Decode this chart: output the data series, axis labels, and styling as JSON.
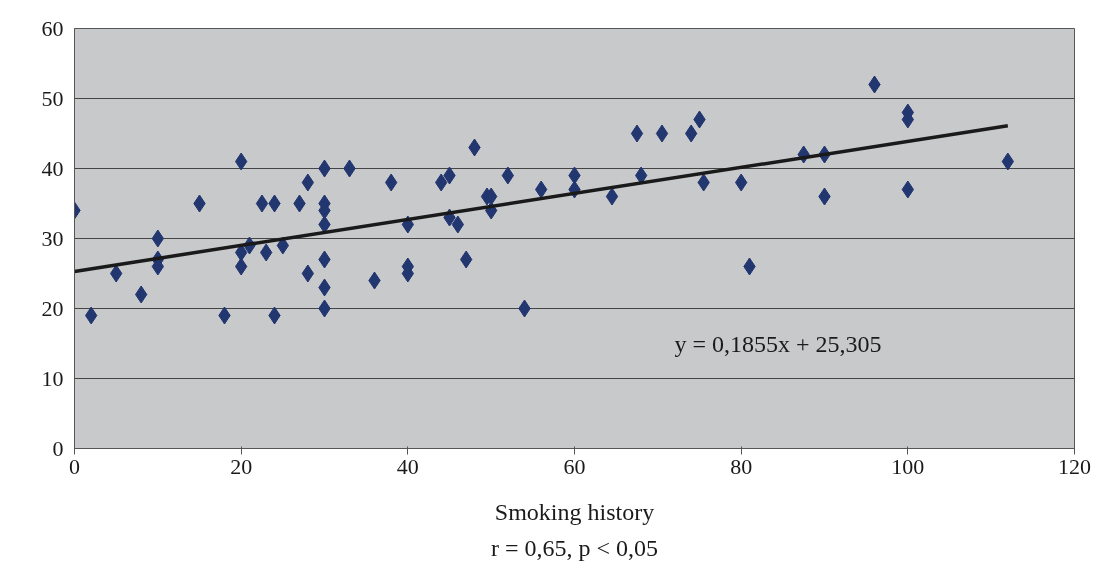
{
  "chart_data": {
    "type": "scatter",
    "xlabel": "Smoking history",
    "annotations": [
      "y = 0,1855x + 25,305",
      "r = 0,65, p < 0,05"
    ],
    "xlim": [
      0,
      120
    ],
    "xticks": [
      0,
      20,
      40,
      60,
      80,
      100,
      120
    ],
    "ylim": [
      0,
      60
    ],
    "yticks": [
      0,
      10,
      20,
      30,
      40,
      50,
      60
    ],
    "grid": "y",
    "marker": "diamond",
    "series": [
      {
        "color": "#223670",
        "x": [
          0,
          2,
          5,
          8,
          10,
          10,
          10,
          15,
          18,
          20,
          20,
          20,
          21,
          22.5,
          23,
          24,
          24,
          25,
          27,
          28,
          28,
          30,
          30,
          30,
          30,
          30,
          30,
          30,
          33,
          36,
          38,
          40,
          40,
          40,
          44,
          45,
          45,
          46,
          47,
          48,
          49.5,
          50,
          50,
          52,
          54,
          56,
          60,
          60,
          64.5,
          67.5,
          68,
          70.5,
          74,
          75,
          75.5,
          80,
          81,
          87.5,
          90,
          90,
          96,
          100,
          100,
          100,
          112
        ],
        "values": [
          34,
          19,
          25,
          22,
          30,
          27,
          26,
          35,
          19,
          41,
          28,
          26,
          29,
          35,
          28,
          35,
          19,
          29,
          35,
          38,
          25,
          40,
          35,
          34,
          32,
          27,
          23,
          20,
          40,
          24,
          38,
          32,
          26,
          25,
          38,
          39,
          33,
          32,
          27,
          43,
          36,
          36,
          34,
          39,
          20,
          37,
          39,
          37,
          36,
          45,
          39,
          45,
          45,
          47,
          38,
          38,
          26,
          42,
          42,
          36,
          52,
          48,
          47,
          37,
          41
        ]
      },
      {
        "type": "line",
        "marker": "none",
        "color": "#1a1a1a",
        "x": [
          0,
          112
        ],
        "values": [
          25.3,
          46.1
        ]
      }
    ]
  }
}
